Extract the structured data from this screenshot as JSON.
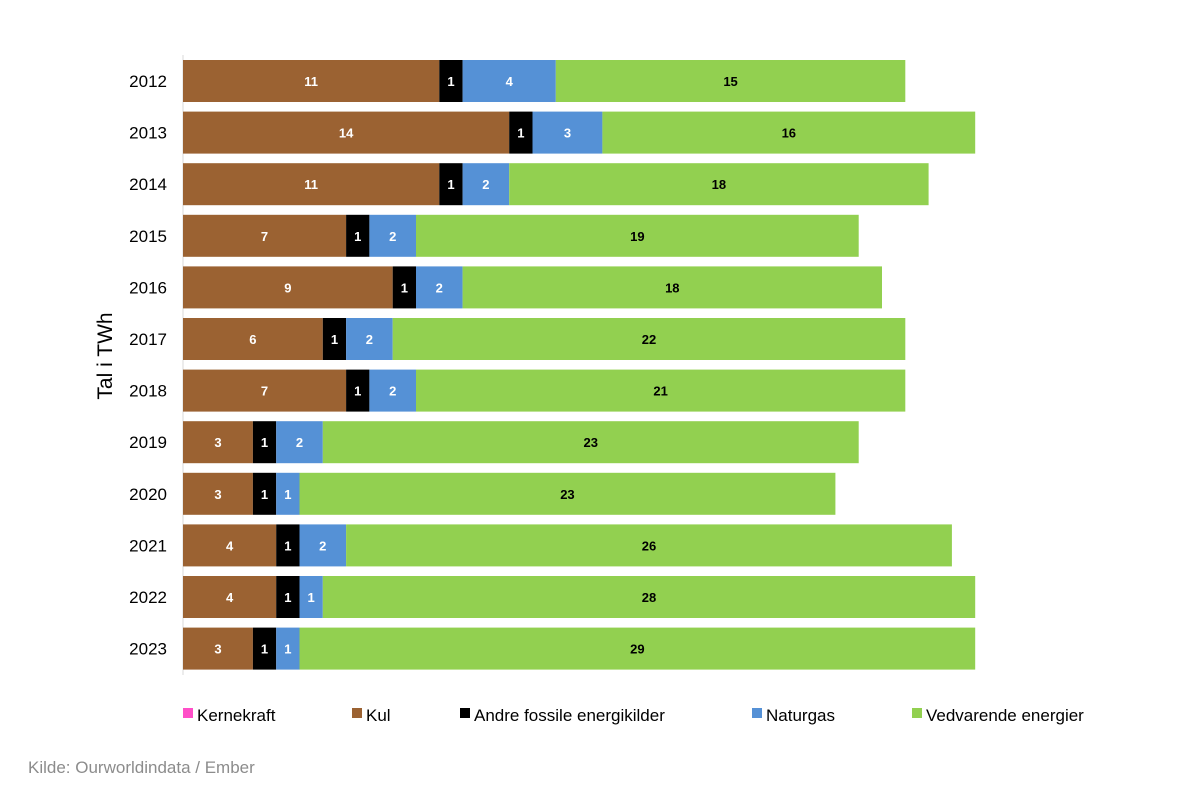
{
  "chart_data": {
    "type": "bar",
    "orientation": "horizontal",
    "stacked": true,
    "categories": [
      "2012",
      "2013",
      "2014",
      "2015",
      "2016",
      "2017",
      "2018",
      "2019",
      "2020",
      "2021",
      "2022",
      "2023"
    ],
    "ylabel": "Tal i TWh",
    "legend_position": "bottom",
    "grid": false,
    "series": [
      {
        "name": "Kernekraft",
        "color": "#ff4fc8",
        "values": [
          0,
          0,
          0,
          0,
          0,
          0,
          0,
          0,
          0,
          0,
          0,
          0
        ],
        "labels": [
          "",
          "",
          "",
          "",
          "",
          "",
          "",
          "",
          "",
          "",
          "",
          ""
        ]
      },
      {
        "name": "Kul",
        "color": "#9b6232",
        "values": [
          11,
          14,
          11,
          7,
          9,
          6,
          7,
          3,
          3,
          4,
          4,
          3
        ],
        "labels": [
          "11",
          "14",
          "11",
          "7",
          "9",
          "6",
          "7",
          "3",
          "3",
          "4",
          "4",
          "3"
        ]
      },
      {
        "name": "Andre fossile energikilder",
        "color": "#000000",
        "values": [
          1,
          1,
          1,
          1,
          1,
          1,
          1,
          1,
          1,
          1,
          1,
          1
        ],
        "labels": [
          "1",
          "1",
          "1",
          "1",
          "1",
          "1",
          "1",
          "1",
          "1",
          "1",
          "1",
          "1"
        ]
      },
      {
        "name": "Naturgas",
        "color": "#5591d6",
        "values": [
          4,
          3,
          2,
          2,
          2,
          2,
          2,
          2,
          1,
          2,
          1,
          1
        ],
        "labels": [
          "4",
          "3",
          "2",
          "2",
          "2",
          "2",
          "2",
          "2",
          "1",
          "2",
          "1",
          "1"
        ]
      },
      {
        "name": "Vedvarende energier",
        "color": "#92d050",
        "values": [
          15,
          16,
          18,
          19,
          18,
          22,
          21,
          23,
          23,
          26,
          28,
          29
        ],
        "labels": [
          "15",
          "16",
          "18",
          "19",
          "18",
          "22",
          "21",
          "23",
          "23",
          "26",
          "28",
          "29"
        ]
      }
    ]
  },
  "source": "Kilde: Ourworldindata / Ember"
}
